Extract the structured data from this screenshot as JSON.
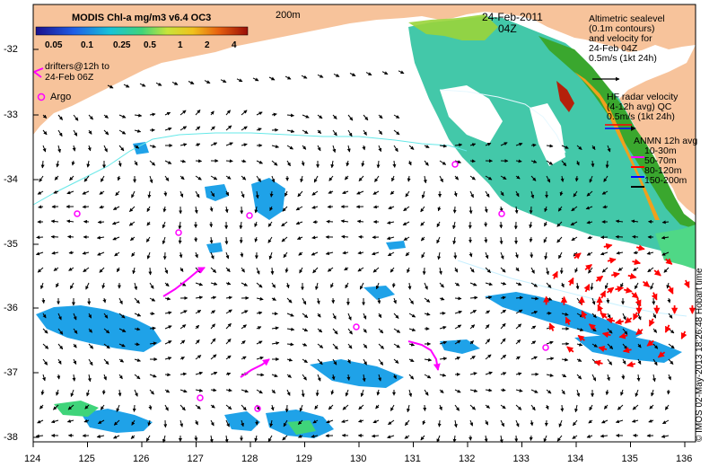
{
  "map": {
    "date_line1": "24-Feb-2011",
    "date_line2": "04Z",
    "depth_label": "200m",
    "colors": {
      "land": "#f7c39b",
      "ocean": "#ffffff",
      "coast_sea_dark": "#1f8b2b",
      "arrow": "#000000",
      "radar": "#ff0000",
      "drifter": "#ff00ff",
      "contour": "#66e8e8"
    }
  },
  "colorbar": {
    "title": "MODIS Chl-a mg/m3 v6.4 OC3",
    "ticks": [
      "0.05",
      "0.1",
      "0.25",
      "0.5",
      "1",
      "2",
      "4"
    ]
  },
  "legend": {
    "drifters": "drifters@12h to\n24-Feb 06Z",
    "argo": "Argo",
    "altimetry_lines": [
      "Altimetric sealevel",
      "(0.1m contours)",
      "and velocity for",
      "24-Feb 04Z",
      "0.5m/s (1kt 24h)"
    ],
    "hf_radar_lines": [
      "HF radar velocity",
      "(4-12h avg) QC",
      "0.5m/s (1kt 24h)"
    ],
    "anmn_title": "ANMN 12h avg",
    "anmn_items": [
      {
        "label": "10-30m",
        "color": "#ff00ff"
      },
      {
        "label": "50-70m",
        "color": "#ff0000"
      },
      {
        "label": "80-120m",
        "color": "#0000ff"
      },
      {
        "label": "150-200m",
        "color": "#000000"
      }
    ]
  },
  "axes": {
    "y_ticks": [
      "-32",
      "-33",
      "-34",
      "-35",
      "-36",
      "-37",
      "-38"
    ],
    "x_ticks": [
      "124",
      "125",
      "126",
      "127",
      "128",
      "129",
      "130",
      "131",
      "132",
      "133",
      "134",
      "135",
      "136"
    ]
  },
  "credit": "© IMOS 02-May-2013 18:26:48 Hobart time"
}
